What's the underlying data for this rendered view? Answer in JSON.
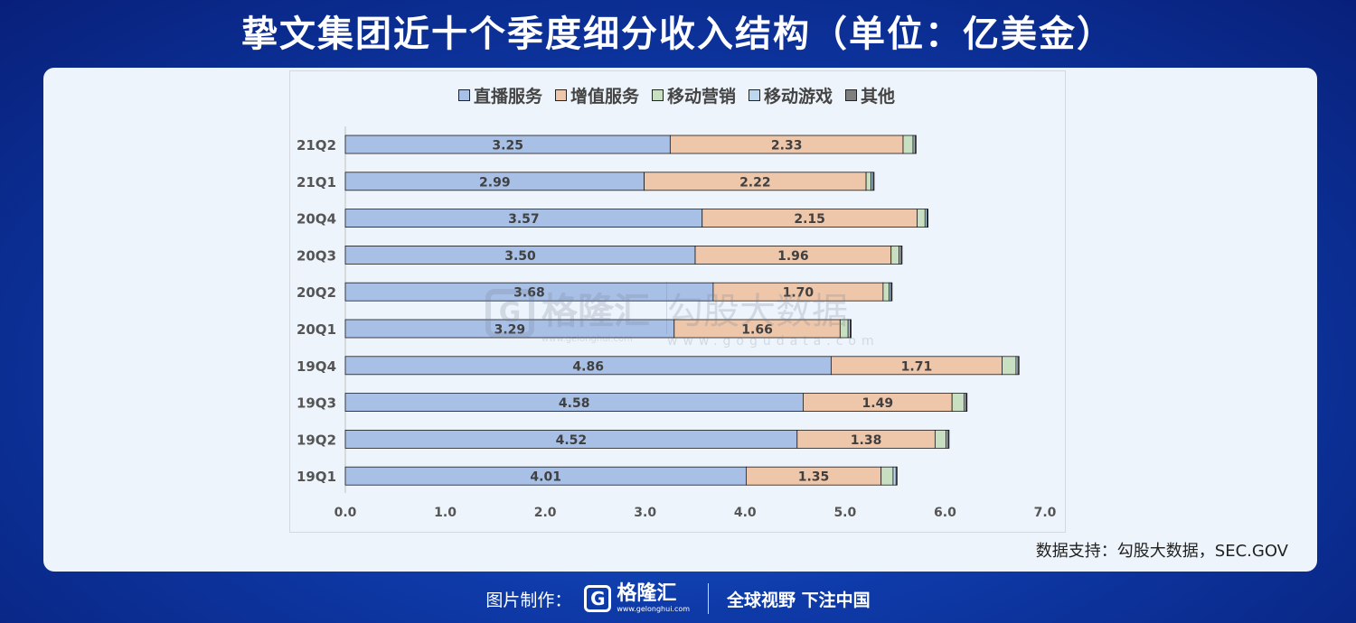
{
  "title": "挚文集团近十个季度细分收入结构（单位：亿美金）",
  "source": "数据支持：勾股大数据，SEC.GOV",
  "footer": {
    "label": "图片制作：",
    "logo_name": "格隆汇",
    "logo_url": "www.gelonghui.com",
    "slogan": "全球视野 下注中国"
  },
  "watermark": {
    "logo_letter": "G",
    "logo_name": "格隆汇",
    "logo_url": "www.gelonghui.com",
    "brand": "勾股大数据",
    "brand_url": "www.gogudata.com"
  },
  "chart_data": {
    "type": "bar",
    "orientation": "horizontal",
    "stacked": true,
    "categories": [
      "21Q2",
      "21Q1",
      "20Q4",
      "20Q3",
      "20Q2",
      "20Q1",
      "19Q4",
      "19Q3",
      "19Q2",
      "19Q1"
    ],
    "series": [
      {
        "name": "直播服务",
        "color": "#a9c0e6",
        "values": [
          3.25,
          2.99,
          3.57,
          3.5,
          3.68,
          3.29,
          4.86,
          4.58,
          4.52,
          4.01
        ],
        "labeled": true
      },
      {
        "name": "增值服务",
        "color": "#eec6aa",
        "values": [
          2.33,
          2.22,
          2.15,
          1.96,
          1.7,
          1.66,
          1.71,
          1.49,
          1.38,
          1.35
        ],
        "labeled": true
      },
      {
        "name": "移动营销",
        "color": "#c8e0c1",
        "values": [
          0.1,
          0.05,
          0.08,
          0.08,
          0.06,
          0.08,
          0.14,
          0.12,
          0.11,
          0.12
        ],
        "labeled": false
      },
      {
        "name": "移动游戏",
        "color": "#bdd7ee",
        "values": [
          0.02,
          0.02,
          0.02,
          0.02,
          0.02,
          0.02,
          0.02,
          0.02,
          0.02,
          0.03
        ],
        "labeled": false
      },
      {
        "name": "其他",
        "color": "#7f7f7f",
        "values": [
          0.01,
          0.01,
          0.01,
          0.01,
          0.01,
          0.01,
          0.01,
          0.01,
          0.01,
          0.01
        ],
        "labeled": false
      }
    ],
    "xlim": [
      0,
      7
    ],
    "xticks": [
      "0.0",
      "1.0",
      "2.0",
      "3.0",
      "4.0",
      "5.0",
      "6.0",
      "7.0"
    ],
    "xlabel": "",
    "ylabel": "",
    "legend_position": "top",
    "grid": false
  }
}
